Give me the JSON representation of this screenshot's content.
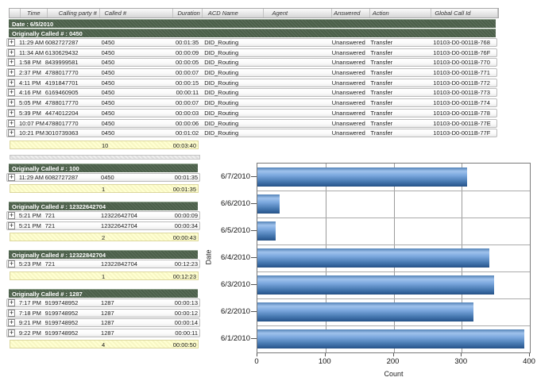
{
  "table": {
    "columns": [
      "Time",
      "Calling party #",
      "Called #",
      "Duration",
      "ACD Name",
      "Agent",
      "Answered",
      "Action",
      "Global Call Id"
    ],
    "date_header": "Date : 6/5/2010",
    "main_group": {
      "title": "Originally Called # : 0450",
      "rows": [
        {
          "time": "11:29 AM",
          "calling": "6082727287",
          "called": "0450",
          "duration": "00:01:35",
          "acd": "DID_Routing",
          "agent": "",
          "answered": "Unanswered",
          "action": "Transfer",
          "global_call_id": "10103-D0-0011B-768"
        },
        {
          "time": "11:34 AM",
          "calling": "6130629432",
          "called": "0450",
          "duration": "00:00:09",
          "acd": "DID_Routing",
          "agent": "",
          "answered": "Unanswered",
          "action": "Transfer",
          "global_call_id": "10103-D0-0011B-76F"
        },
        {
          "time": "1:58 PM",
          "calling": "8439999581",
          "called": "0450",
          "duration": "00:00:05",
          "acd": "DID_Routing",
          "agent": "",
          "answered": "Unanswered",
          "action": "Transfer",
          "global_call_id": "10103-D0-0011B-770"
        },
        {
          "time": "2:37 PM",
          "calling": "4788017770",
          "called": "0450",
          "duration": "00:00:07",
          "acd": "DID_Routing",
          "agent": "",
          "answered": "Unanswered",
          "action": "Transfer",
          "global_call_id": "10103-D0-0011B-771"
        },
        {
          "time": "4:11 PM",
          "calling": "4191847701",
          "called": "0450",
          "duration": "00:00:15",
          "acd": "DID_Routing",
          "agent": "",
          "answered": "Unanswered",
          "action": "Transfer",
          "global_call_id": "10103-D0-0011B-772"
        },
        {
          "time": "4:16 PM",
          "calling": "6169460905",
          "called": "0450",
          "duration": "00:00:11",
          "acd": "DID_Routing",
          "agent": "",
          "answered": "Unanswered",
          "action": "Transfer",
          "global_call_id": "10103-D0-0011B-773"
        },
        {
          "time": "5:05 PM",
          "calling": "4788017770",
          "called": "0450",
          "duration": "00:00:07",
          "acd": "DID_Routing",
          "agent": "",
          "answered": "Unanswered",
          "action": "Transfer",
          "global_call_id": "10103-D0-0011B-774"
        },
        {
          "time": "5:39 PM",
          "calling": "4474012204",
          "called": "0450",
          "duration": "00:00:03",
          "acd": "DID_Routing",
          "agent": "",
          "answered": "Unanswered",
          "action": "Transfer",
          "global_call_id": "10103-D0-0011B-778"
        },
        {
          "time": "10:07 PM",
          "calling": "4788017770",
          "called": "0450",
          "duration": "00:00:06",
          "acd": "DID_Routing",
          "agent": "",
          "answered": "Unanswered",
          "action": "Transfer",
          "global_call_id": "10103-D0-0011B-77E"
        },
        {
          "time": "10:21 PM",
          "calling": "3010739363",
          "called": "0450",
          "duration": "00:01:02",
          "acd": "DID_Routing",
          "agent": "",
          "answered": "Unanswered",
          "action": "Transfer",
          "global_call_id": "10103-D0-0011B-77F"
        }
      ],
      "summary": {
        "count": "10",
        "total_duration": "00:03:40"
      }
    },
    "groups": [
      {
        "title": "Originally Called # : 100",
        "rows": [
          {
            "time": "11:29 AM",
            "calling": "6082727287",
            "called": "0450",
            "duration": "00:01:35"
          }
        ],
        "summary": {
          "count": "1",
          "total_duration": "00:01:35"
        }
      },
      {
        "title": "Originally Called # : 12322642704",
        "rows": [
          {
            "time": "5:21 PM",
            "calling": "721",
            "called": "12322642704",
            "duration": "00:00:09"
          },
          {
            "time": "5:21 PM",
            "calling": "721",
            "called": "12322642704",
            "duration": "00:00:34"
          }
        ],
        "summary": {
          "count": "2",
          "total_duration": "00:00:43"
        }
      },
      {
        "title": "Originally Called # : 12322842704",
        "rows": [
          {
            "time": "5:23 PM",
            "calling": "721",
            "called": "12322842704",
            "duration": "00:12:23"
          }
        ],
        "summary": {
          "count": "1",
          "total_duration": "00:12:23"
        }
      },
      {
        "title": "Originally Called # : 1287",
        "rows": [
          {
            "time": "7:17 PM",
            "calling": "9199748952",
            "called": "1287",
            "duration": "00:00:13"
          },
          {
            "time": "7:18 PM",
            "calling": "9199748952",
            "called": "1287",
            "duration": "00:00:12"
          },
          {
            "time": "9:21 PM",
            "calling": "9199748952",
            "called": "1287",
            "duration": "00:00:14"
          },
          {
            "time": "9:22 PM",
            "calling": "9199748952",
            "called": "1287",
            "duration": "00:00:11"
          }
        ],
        "summary": {
          "count": "4",
          "total_duration": "00:00:50"
        }
      }
    ]
  },
  "chart_data": {
    "type": "bar",
    "orientation": "horizontal",
    "categories": [
      "6/7/2010",
      "6/6/2010",
      "6/5/2010",
      "6/4/2010",
      "6/3/2010",
      "6/2/2010",
      "6/1/2010"
    ],
    "values": [
      308,
      33,
      27,
      340,
      348,
      317,
      392
    ],
    "title": "",
    "xlabel": "Count",
    "ylabel": "Date",
    "xlim": [
      0,
      400
    ],
    "xticks": [
      0,
      100,
      200,
      300,
      400
    ],
    "grid": true,
    "legend": "none"
  },
  "colors": {
    "group_header_green": "#4b5f49",
    "summary_yellow": "#ffffd2",
    "bar_blue": "#5b8fd0",
    "row_border": "#bcbcbc"
  }
}
